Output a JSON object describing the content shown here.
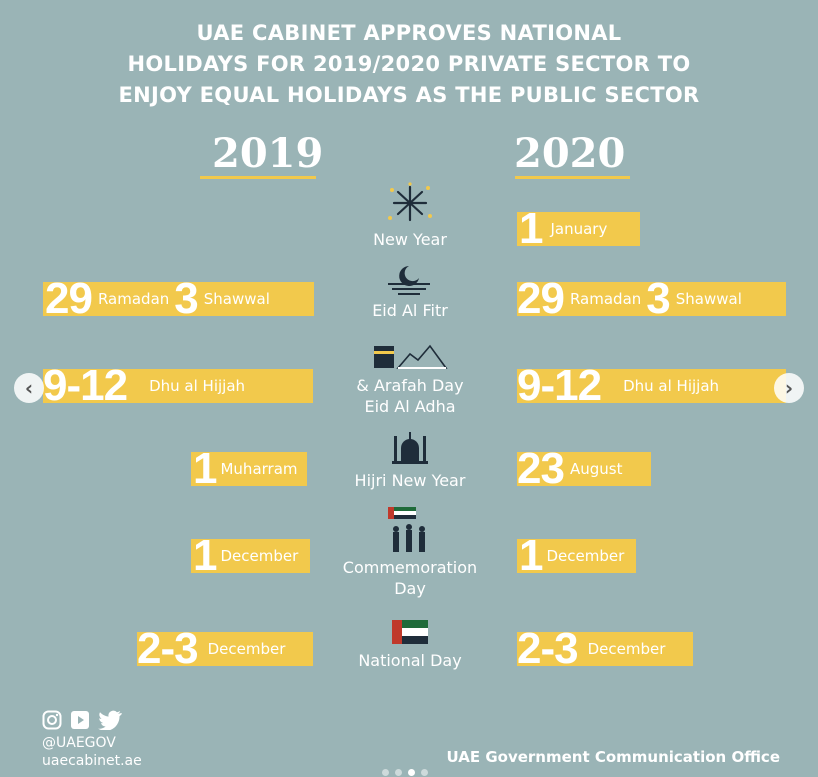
{
  "title": [
    "UAE CABINET APPROVES NATIONAL",
    "HOLIDAYS FOR 2019/2020 PRIVATE SECTOR TO",
    "ENJOY EQUAL HOLIDAYS AS THE PUBLIC SECTOR"
  ],
  "years": {
    "left": "2019",
    "right": "2020"
  },
  "holidays": [
    {
      "name": [
        "New Year"
      ],
      "icon": "fireworks-icon",
      "y2020": {
        "num": "1",
        "month": "January"
      }
    },
    {
      "name": [
        "Eid Al Fitr"
      ],
      "icon": "crescent-moon-icon",
      "y2019": {
        "num": "29",
        "month": "Ramadan",
        "num2": "3",
        "month2": "Shawwal"
      },
      "y2020": {
        "num": "29",
        "month": "Ramadan",
        "num2": "3",
        "month2": "Shawwal"
      }
    },
    {
      "name": [
        "& Arafah Day",
        "Eid Al Adha"
      ],
      "icon": "kaaba-icon",
      "y2019": {
        "num": "9-12",
        "month": "Dhu al Hijjah"
      },
      "y2020": {
        "num": "9-12",
        "month": "Dhu al Hijjah"
      }
    },
    {
      "name": [
        "Hijri New Year"
      ],
      "icon": "mosque-icon",
      "y2019": {
        "num": "1",
        "month": "Muharram"
      },
      "y2020": {
        "num": "23",
        "month": "August"
      }
    },
    {
      "name": [
        "Commemoration",
        "Day"
      ],
      "icon": "soldiers-flag-icon",
      "y2019": {
        "num": "1",
        "month": "December"
      },
      "y2020": {
        "num": "1",
        "month": "December"
      }
    },
    {
      "name": [
        "National Day"
      ],
      "icon": "uae-flag-icon",
      "y2019": {
        "num": "2-3",
        "month": "December"
      },
      "y2020": {
        "num": "2-3",
        "month": "December"
      }
    }
  ],
  "footer": {
    "handle": "@UAEGOV",
    "website": "uaecabinet.ae",
    "office": "UAE Government Communication Office",
    "social_icons": [
      "instagram-icon",
      "youtube-icon",
      "twitter-icon"
    ]
  },
  "carousel": {
    "prev": "‹",
    "next": "›",
    "dots": 4,
    "active_dot": 2
  },
  "colors": {
    "background": "#9ab4b6",
    "accent": "#f2c94c",
    "text": "#ffffff"
  }
}
